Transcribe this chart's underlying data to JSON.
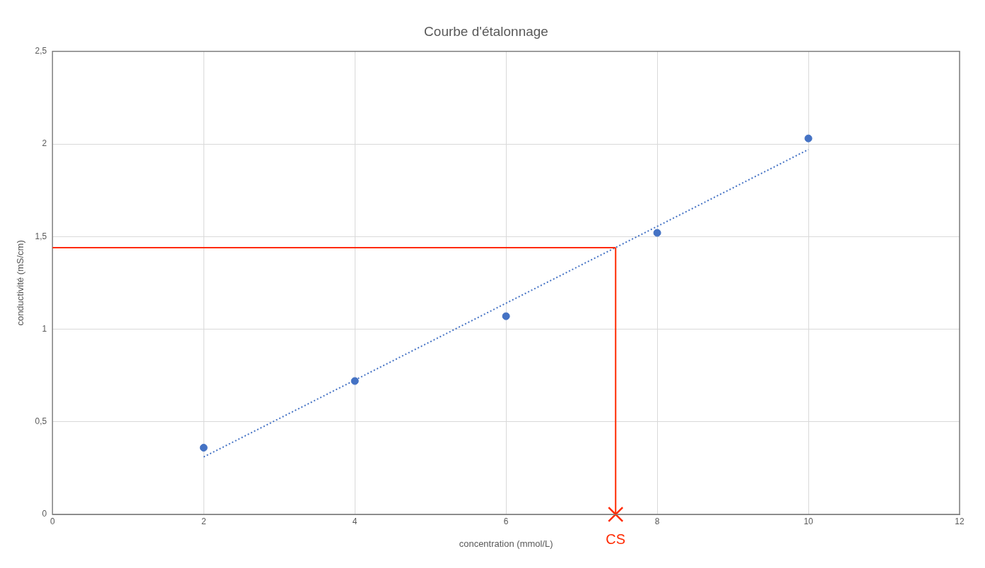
{
  "chart_data": {
    "type": "scatter",
    "title": "Courbe d'étalonnage",
    "xlabel": "concentration (mmol/L)",
    "ylabel": "conductivité (mS/cm)",
    "x": [
      2,
      4,
      6,
      8,
      10
    ],
    "series": [
      {
        "type": "scatter",
        "color": "#4472c4",
        "values": [
          0.36,
          0.72,
          1.07,
          1.52,
          2.03
        ],
        "marker": "circle"
      },
      {
        "type": "line",
        "color": "#4472c4",
        "x": [
          2,
          10
        ],
        "values": [
          0.31,
          1.97
        ],
        "line_style": "dotted",
        "marker": "none"
      },
      {
        "type": "scatter",
        "color": "#ff2a00",
        "x": [
          7.45
        ],
        "values": [
          0
        ],
        "marker": "cross"
      }
    ],
    "ref_lines": [
      {
        "axis": "y",
        "value": 1.44,
        "color": "#ff2a00"
      },
      {
        "axis": "x",
        "value": 7.45,
        "color": "#ff2a00"
      }
    ],
    "annotations": [
      {
        "text": "CS",
        "x": 7.45,
        "y": 0
      }
    ],
    "xlim": [
      0,
      12
    ],
    "xticks": [
      0,
      2,
      4,
      6,
      8,
      10,
      12
    ],
    "ylim": [
      0,
      2.5
    ],
    "yticks": [
      0,
      {
        "value": 0.5,
        "label": "0,5"
      },
      1,
      {
        "value": 1.5,
        "label": "1,5"
      },
      2,
      {
        "value": 2.5,
        "label": "2,5"
      }
    ],
    "grid": true,
    "legend": false
  }
}
